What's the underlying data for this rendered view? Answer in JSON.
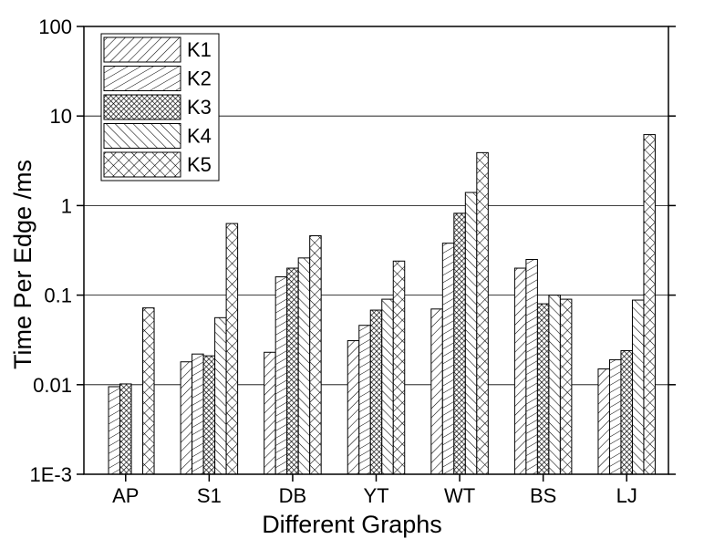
{
  "chart_data": {
    "type": "bar",
    "title": "",
    "xlabel": "Different Graphs",
    "ylabel": "Time Per Edge /ms",
    "yscale": "log",
    "ylim": [
      0.001,
      100
    ],
    "yticks": [
      {
        "value": 0.001,
        "label": "1E-3"
      },
      {
        "value": 0.01,
        "label": "0.01"
      },
      {
        "value": 0.1,
        "label": "0.1"
      },
      {
        "value": 1,
        "label": "1"
      },
      {
        "value": 10,
        "label": "10"
      },
      {
        "value": 100,
        "label": "100"
      }
    ],
    "grid": true,
    "legend_position": "top-left",
    "categories": [
      "AP",
      "S1",
      "DB",
      "YT",
      "WT",
      "BS",
      "LJ"
    ],
    "series": [
      {
        "name": "K1",
        "pattern": "diag-up",
        "values": [
          null,
          0.018,
          0.023,
          0.031,
          0.07,
          0.2,
          0.015
        ]
      },
      {
        "name": "K2",
        "pattern": "diag-up-fine",
        "values": [
          0.0095,
          0.022,
          0.16,
          0.046,
          0.38,
          0.25,
          0.019
        ]
      },
      {
        "name": "K3",
        "pattern": "dense-cross",
        "values": [
          0.0102,
          0.021,
          0.2,
          0.068,
          0.82,
          0.08,
          0.024
        ]
      },
      {
        "name": "K4",
        "pattern": "diag-down",
        "values": [
          null,
          0.056,
          0.26,
          0.09,
          1.4,
          0.1,
          0.088
        ]
      },
      {
        "name": "K5",
        "pattern": "cross",
        "values": [
          0.072,
          0.63,
          0.46,
          0.24,
          3.9,
          0.09,
          6.2
        ]
      }
    ]
  }
}
